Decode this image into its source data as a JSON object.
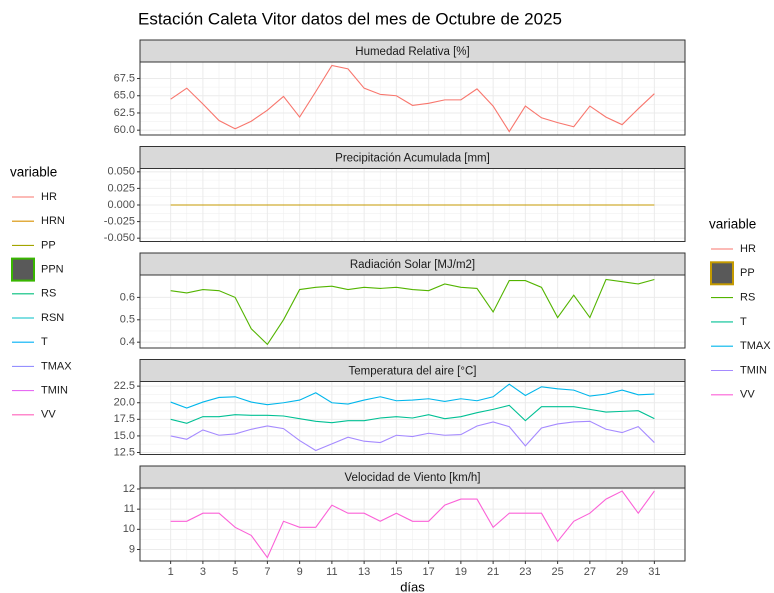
{
  "title": "Estación Caleta Vitor datos del mes de Octubre de 2025",
  "legends": [
    {
      "title": "variable",
      "items": [
        {
          "name": "HR",
          "color": "#F8766D"
        },
        {
          "name": "HRN",
          "color": "#D89000"
        },
        {
          "name": "PP",
          "color": "#A3A500"
        },
        {
          "name": "PPN",
          "color": "#39B600",
          "fill": "#595959"
        },
        {
          "name": "RS",
          "color": "#00BF7D"
        },
        {
          "name": "RSN",
          "color": "#00BFC4"
        },
        {
          "name": "T",
          "color": "#00B0F6"
        },
        {
          "name": "TMAX",
          "color": "#9590FF"
        },
        {
          "name": "TMIN",
          "color": "#E76BF3"
        },
        {
          "name": "VV",
          "color": "#FF62BC"
        }
      ]
    },
    {
      "title": "variable",
      "items": [
        {
          "name": "HR",
          "color": "#F8766D"
        },
        {
          "name": "PP",
          "color": "#C49A00",
          "fill": "#595959"
        },
        {
          "name": "RS",
          "color": "#53B400"
        },
        {
          "name": "T",
          "color": "#00C094"
        },
        {
          "name": "TMAX",
          "color": "#00B6EB"
        },
        {
          "name": "TMIN",
          "color": "#A58AFF"
        },
        {
          "name": "VV",
          "color": "#FB61D7"
        }
      ]
    }
  ],
  "chart_data": [
    {
      "type": "line",
      "title": "Humedad Relativa [%]",
      "grid": true,
      "show_x_axis": false,
      "x": [
        1,
        2,
        3,
        4,
        5,
        6,
        7,
        8,
        9,
        10,
        11,
        12,
        13,
        14,
        15,
        16,
        17,
        18,
        19,
        20,
        21,
        22,
        23,
        24,
        25,
        26,
        27,
        28,
        29,
        30,
        31
      ],
      "xlim": [
        -0.9,
        32.9
      ],
      "xticks": [
        1,
        3,
        5,
        7,
        9,
        11,
        13,
        15,
        17,
        19,
        21,
        23,
        25,
        27,
        29,
        31
      ],
      "ylim": [
        59.3,
        69.9
      ],
      "yticks": [
        {
          "value": 60,
          "label": "60.0"
        },
        62.5,
        {
          "value": 65,
          "label": "65.0"
        },
        67.5
      ],
      "series": [
        {
          "color": "#F8766D",
          "values": [
            64.5,
            66.1,
            63.8,
            61.4,
            60.2,
            61.3,
            62.9,
            64.9,
            61.9,
            65.6,
            69.4,
            68.9,
            66.1,
            65.2,
            65.0,
            63.6,
            63.9,
            64.4,
            64.4,
            66.0,
            63.5,
            59.8,
            63.5,
            61.8,
            61.1,
            60.5,
            63.5,
            61.9,
            60.8,
            63.1,
            65.3
          ]
        }
      ]
    },
    {
      "type": "line",
      "title": "Precipitación Acumulada [mm]",
      "grid": true,
      "show_x_axis": false,
      "x": [
        1,
        2,
        3,
        4,
        5,
        6,
        7,
        8,
        9,
        10,
        11,
        12,
        13,
        14,
        15,
        16,
        17,
        18,
        19,
        20,
        21,
        22,
        23,
        24,
        25,
        26,
        27,
        28,
        29,
        30,
        31
      ],
      "xlim": [
        -0.9,
        32.9
      ],
      "xticks": [
        1,
        3,
        5,
        7,
        9,
        11,
        13,
        15,
        17,
        19,
        21,
        23,
        25,
        27,
        29,
        31
      ],
      "ylim": [
        -0.055,
        0.055
      ],
      "yticks": [
        {
          "value": -0.05,
          "label": "-0.050"
        },
        -0.025,
        {
          "value": 0,
          "label": "0.000"
        },
        0.025,
        {
          "value": 0.05,
          "label": "0.050"
        }
      ],
      "series": [
        {
          "color": "#C49A00",
          "values": [
            0,
            0,
            0,
            0,
            0,
            0,
            0,
            0,
            0,
            0,
            0,
            0,
            0,
            0,
            0,
            0,
            0,
            0,
            0,
            0,
            0,
            0,
            0,
            0,
            0,
            0,
            0,
            0,
            0,
            0,
            0
          ]
        }
      ]
    },
    {
      "type": "line",
      "title": "Radiación Solar [MJ/m2]",
      "grid": true,
      "show_x_axis": false,
      "x": [
        1,
        2,
        3,
        4,
        5,
        6,
        7,
        8,
        9,
        10,
        11,
        12,
        13,
        14,
        15,
        16,
        17,
        18,
        19,
        20,
        21,
        22,
        23,
        24,
        25,
        26,
        27,
        28,
        29,
        30,
        31
      ],
      "xlim": [
        -0.9,
        32.9
      ],
      "xticks": [
        1,
        3,
        5,
        7,
        9,
        11,
        13,
        15,
        17,
        19,
        21,
        23,
        25,
        27,
        29,
        31
      ],
      "ylim": [
        0.374,
        0.7
      ],
      "yticks": [
        0.4,
        0.5,
        0.6
      ],
      "series": [
        {
          "color": "#53B400",
          "values": [
            0.63,
            0.62,
            0.635,
            0.63,
            0.6,
            0.46,
            0.39,
            0.5,
            0.635,
            0.645,
            0.65,
            0.635,
            0.645,
            0.64,
            0.645,
            0.635,
            0.63,
            0.66,
            0.645,
            0.64,
            0.535,
            0.675,
            0.675,
            0.645,
            0.51,
            0.61,
            0.51,
            0.68,
            0.67,
            0.66,
            0.68
          ]
        }
      ]
    },
    {
      "type": "line",
      "title": "Temperatura del aire [°C]",
      "grid": true,
      "show_x_axis": false,
      "x": [
        1,
        2,
        3,
        4,
        5,
        6,
        7,
        8,
        9,
        10,
        11,
        12,
        13,
        14,
        15,
        16,
        17,
        18,
        19,
        20,
        21,
        22,
        23,
        24,
        25,
        26,
        27,
        28,
        29,
        30,
        31
      ],
      "xlim": [
        -0.9,
        32.9
      ],
      "xticks": [
        1,
        3,
        5,
        7,
        9,
        11,
        13,
        15,
        17,
        19,
        21,
        23,
        25,
        27,
        29,
        31
      ],
      "ylim": [
        12.2,
        23.2
      ],
      "yticks": [
        12.5,
        {
          "value": 15,
          "label": "15.0"
        },
        17.5,
        {
          "value": 20,
          "label": "20.0"
        },
        22.5
      ],
      "series": [
        {
          "color": "#00B6EB",
          "values": [
            20.1,
            19.2,
            20.1,
            20.8,
            20.9,
            20.1,
            19.7,
            20.0,
            20.4,
            21.5,
            20.0,
            19.8,
            20.4,
            20.9,
            20.3,
            20.4,
            20.6,
            20.2,
            20.6,
            20.3,
            20.9,
            22.8,
            21.1,
            22.4,
            22.1,
            21.9,
            21.0,
            21.3,
            21.9,
            21.2,
            21.3
          ]
        },
        {
          "color": "#00C094",
          "values": [
            17.5,
            16.9,
            17.9,
            17.9,
            18.2,
            18.1,
            18.1,
            18.0,
            17.6,
            17.2,
            17.0,
            17.3,
            17.3,
            17.7,
            17.9,
            17.7,
            18.2,
            17.6,
            17.9,
            18.5,
            19.0,
            19.6,
            17.3,
            19.4,
            19.4,
            19.4,
            19.0,
            18.6,
            18.7,
            18.8,
            17.6
          ]
        },
        {
          "color": "#A58AFF",
          "values": [
            15.0,
            14.5,
            15.9,
            15.1,
            15.3,
            16.0,
            16.5,
            16.1,
            14.3,
            12.8,
            13.8,
            14.8,
            14.2,
            14.0,
            15.1,
            14.9,
            15.4,
            15.1,
            15.2,
            16.5,
            17.1,
            16.4,
            13.5,
            16.2,
            16.8,
            17.1,
            17.2,
            16.0,
            15.5,
            16.4,
            14.0
          ]
        }
      ]
    },
    {
      "type": "line",
      "title": "Velocidad de Viento [km/h]",
      "grid": true,
      "show_x_axis": true,
      "xlabel": "días",
      "x": [
        1,
        2,
        3,
        4,
        5,
        6,
        7,
        8,
        9,
        10,
        11,
        12,
        13,
        14,
        15,
        16,
        17,
        18,
        19,
        20,
        21,
        22,
        23,
        24,
        25,
        26,
        27,
        28,
        29,
        30,
        31
      ],
      "xlim": [
        -0.9,
        32.9
      ],
      "xticks": [
        1,
        3,
        5,
        7,
        9,
        11,
        13,
        15,
        17,
        19,
        21,
        23,
        25,
        27,
        29,
        31
      ],
      "ylim": [
        8.43,
        12.05
      ],
      "yticks": [
        9,
        10,
        11,
        12
      ],
      "series": [
        {
          "color": "#FB61D7",
          "values": [
            10.4,
            10.4,
            10.8,
            10.8,
            10.1,
            9.7,
            8.6,
            10.4,
            10.1,
            10.1,
            11.2,
            10.8,
            10.8,
            10.4,
            10.8,
            10.4,
            10.4,
            11.2,
            11.5,
            11.5,
            10.1,
            10.8,
            10.8,
            10.8,
            9.4,
            10.4,
            10.8,
            11.5,
            11.9,
            10.8,
            11.9
          ]
        }
      ]
    }
  ]
}
